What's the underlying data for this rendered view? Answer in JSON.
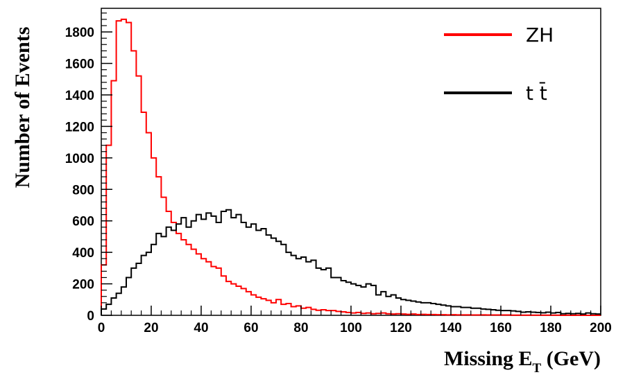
{
  "chart_data": {
    "type": "line",
    "style": "step-histogram",
    "xlabel": {
      "main": "Missing E",
      "sub": "T",
      "unit": " (GeV)"
    },
    "ylabel": "Number of Events",
    "xlim": [
      0,
      200
    ],
    "ylim": [
      0,
      1950
    ],
    "x_ticks": [
      0,
      20,
      40,
      60,
      80,
      100,
      120,
      140,
      160,
      180,
      200
    ],
    "x_tick_labels": [
      "0",
      "20",
      "40",
      "60",
      "80",
      "100",
      "120",
      "140",
      "160",
      "180",
      "200"
    ],
    "y_ticks": [
      0,
      200,
      400,
      600,
      800,
      1000,
      1200,
      1400,
      1600,
      1800
    ],
    "y_tick_labels": [
      "0",
      "200",
      "400",
      "600",
      "800",
      "1000",
      "1200",
      "1400",
      "1600",
      "1800"
    ],
    "grid": false,
    "legend_position": "top-right",
    "bin_width": 2,
    "x": [
      0,
      2,
      4,
      6,
      8,
      10,
      12,
      14,
      16,
      18,
      20,
      22,
      24,
      26,
      28,
      30,
      32,
      34,
      36,
      38,
      40,
      42,
      44,
      46,
      48,
      50,
      52,
      54,
      56,
      58,
      60,
      62,
      64,
      66,
      68,
      70,
      72,
      74,
      76,
      78,
      80,
      82,
      84,
      86,
      88,
      90,
      92,
      94,
      96,
      98,
      100,
      102,
      104,
      106,
      108,
      110,
      112,
      114,
      116,
      118,
      120,
      122,
      124,
      126,
      128,
      130,
      132,
      134,
      136,
      138,
      140,
      142,
      144,
      146,
      148,
      150,
      152,
      154,
      156,
      158,
      160,
      162,
      164,
      166,
      168,
      170,
      172,
      174,
      176,
      178,
      180,
      182,
      184,
      186,
      188,
      190,
      192,
      194,
      196,
      198
    ],
    "series": [
      {
        "name": "ZH",
        "color": "#ff0000",
        "values": [
          320,
          1080,
          1490,
          1870,
          1880,
          1860,
          1680,
          1520,
          1290,
          1160,
          1000,
          880,
          750,
          660,
          590,
          520,
          480,
          450,
          420,
          390,
          360,
          340,
          310,
          300,
          250,
          215,
          200,
          185,
          170,
          150,
          130,
          115,
          105,
          95,
          80,
          100,
          70,
          75,
          55,
          60,
          45,
          50,
          38,
          32,
          35,
          30,
          30,
          25,
          22,
          18,
          15,
          18,
          12,
          15,
          10,
          12,
          15,
          10,
          8,
          10,
          8,
          6,
          8,
          5,
          6,
          5,
          5,
          4,
          4,
          3,
          4,
          3,
          3,
          3,
          2,
          2,
          3,
          2,
          2,
          2,
          2,
          2,
          1,
          1,
          1,
          1,
          1,
          1,
          1,
          1,
          1,
          1,
          0,
          1,
          0,
          1,
          0,
          0,
          0,
          0
        ]
      },
      {
        "name": "t t̄",
        "color": "#000000",
        "values": [
          40,
          70,
          110,
          140,
          180,
          240,
          300,
          330,
          380,
          400,
          450,
          520,
          500,
          560,
          540,
          580,
          620,
          560,
          600,
          640,
          610,
          650,
          630,
          590,
          660,
          670,
          620,
          640,
          590,
          560,
          580,
          540,
          550,
          510,
          490,
          470,
          450,
          400,
          380,
          360,
          370,
          340,
          350,
          300,
          290,
          300,
          240,
          240,
          220,
          210,
          200,
          190,
          180,
          200,
          190,
          130,
          150,
          120,
          130,
          110,
          100,
          95,
          90,
          85,
          80,
          80,
          75,
          70,
          65,
          60,
          55,
          55,
          50,
          50,
          45,
          45,
          40,
          38,
          35,
          32,
          30,
          30,
          28,
          25,
          20,
          22,
          20,
          18,
          16,
          20,
          15,
          18,
          10,
          12,
          10,
          12,
          8,
          15,
          10,
          8
        ]
      }
    ]
  }
}
